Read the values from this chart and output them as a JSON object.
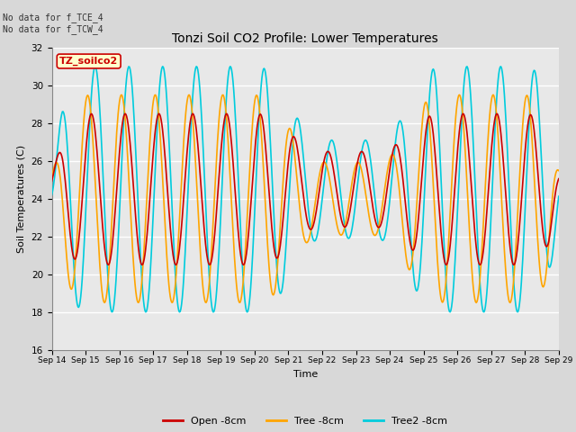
{
  "title": "Tonzi Soil CO2 Profile: Lower Temperatures",
  "xlabel": "Time",
  "ylabel": "Soil Temperatures (C)",
  "ylim": [
    16,
    32
  ],
  "xlim": [
    0,
    15
  ],
  "xtick_labels": [
    "Sep 14",
    "Sep 15",
    "Sep 16",
    "Sep 17",
    "Sep 18",
    "Sep 19",
    "Sep 20",
    "Sep 21",
    "Sep 22",
    "Sep 23",
    "Sep 24",
    "Sep 25",
    "Sep 26",
    "Sep 27",
    "Sep 28",
    "Sep 29"
  ],
  "ytick_values": [
    16,
    18,
    20,
    22,
    24,
    26,
    28,
    30,
    32
  ],
  "series_colors": [
    "#cc0000",
    "#ffa500",
    "#00ccdd"
  ],
  "series_labels": [
    "Open -8cm",
    "Tree -8cm",
    "Tree2 -8cm"
  ],
  "line_width": 1.2,
  "bg_color": "#e8e8e8",
  "grid_color": "#ffffff",
  "annotation_text": "No data for f_TCE_4\nNo data for f_TCW_4",
  "watermark_text": "TZ_soilco2",
  "watermark_color": "#cc0000",
  "watermark_bg": "#ffffcc",
  "watermark_border": "#cc0000",
  "fig_width": 6.4,
  "fig_height": 4.8,
  "dpi": 100
}
